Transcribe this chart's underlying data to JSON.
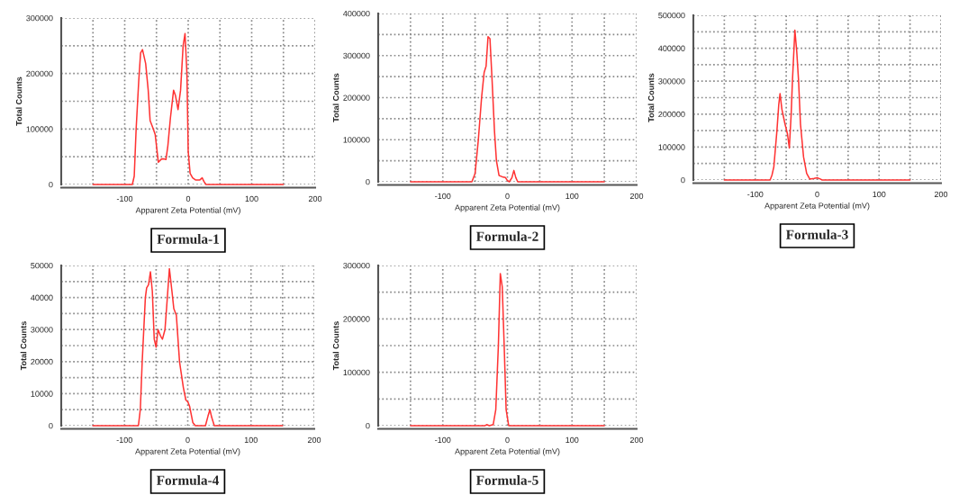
{
  "chart_data": [
    {
      "type": "line",
      "title": "Formula-1",
      "xlabel": "Apparent Zeta Potential (mV)",
      "ylabel": "Total Counts",
      "grid": true,
      "legend": false,
      "xlim": [
        -200,
        200
      ],
      "xticks": [
        {
          "value": -150,
          "label": null
        },
        -100,
        {
          "value": -50,
          "label": null
        },
        0,
        {
          "value": 50,
          "label": null
        },
        100,
        {
          "value": 150,
          "label": null
        },
        200
      ],
      "ylim": [
        0,
        300000
      ],
      "yticks": [
        0,
        {
          "value": 50000,
          "label": null
        },
        100000,
        {
          "value": 150000,
          "label": null
        },
        200000,
        {
          "value": 250000,
          "label": null
        },
        300000
      ],
      "series": [
        {
          "color": "#ff3333",
          "x": [
            -150,
            -88,
            -85,
            -82,
            -78,
            -75,
            -72,
            -67,
            -63,
            -60,
            -55,
            -52,
            -47,
            -42,
            -38,
            -35,
            -32,
            -28,
            -23,
            -20,
            -16,
            -12,
            -8,
            -5,
            -2,
            0,
            3,
            7,
            12,
            18,
            22,
            25,
            28,
            150
          ],
          "values": [
            0,
            0,
            15000,
            100000,
            185000,
            237000,
            243000,
            218000,
            170000,
            115000,
            100000,
            90000,
            40000,
            46000,
            46000,
            45000,
            70000,
            120000,
            170000,
            160000,
            135000,
            170000,
            250000,
            272000,
            200000,
            60000,
            20000,
            12000,
            8000,
            8000,
            12000,
            5000,
            0,
            0
          ]
        }
      ]
    },
    {
      "type": "line",
      "title": "Formula-2",
      "xlabel": "Apparent Zeta Potential (mV)",
      "ylabel": "Total Counts",
      "grid": true,
      "legend": false,
      "xlim": [
        -200,
        200
      ],
      "xticks": [
        {
          "value": -150,
          "label": null
        },
        -100,
        {
          "value": -50,
          "label": null
        },
        0,
        {
          "value": 50,
          "label": null
        },
        100,
        {
          "value": 150,
          "label": null
        },
        200
      ],
      "ylim": [
        0,
        400000
      ],
      "yticks": [
        0,
        {
          "value": 50000,
          "label": null
        },
        100000,
        {
          "value": 150000,
          "label": null
        },
        200000,
        {
          "value": 250000,
          "label": null
        },
        300000,
        {
          "value": 350000,
          "label": null
        },
        400000
      ],
      "series": [
        {
          "color": "#ff3333",
          "x": [
            -150,
            -55,
            -50,
            -45,
            -40,
            -36,
            -33,
            -30,
            -27,
            -24,
            -20,
            -17,
            -13,
            -8,
            -3,
            0,
            3,
            7,
            10,
            13,
            16,
            150
          ],
          "values": [
            0,
            0,
            20000,
            100000,
            200000,
            260000,
            275000,
            345000,
            340000,
            250000,
            120000,
            50000,
            15000,
            12000,
            10000,
            3000,
            0,
            10000,
            27000,
            10000,
            0,
            0
          ]
        }
      ]
    },
    {
      "type": "line",
      "title": "Formula-3",
      "xlabel": "Apparent Zeta Potential (mV)",
      "ylabel": "Total Counts",
      "grid": true,
      "legend": false,
      "xlim": [
        -200,
        200
      ],
      "xticks": [
        {
          "value": -150,
          "label": null
        },
        -100,
        {
          "value": -50,
          "label": null
        },
        0,
        {
          "value": 50,
          "label": null
        },
        100,
        {
          "value": 150,
          "label": null
        },
        200
      ],
      "ylim": [
        0,
        500000
      ],
      "yticks": [
        0,
        {
          "value": 50000,
          "label": null
        },
        100000,
        {
          "value": 150000,
          "label": null
        },
        200000,
        {
          "value": 250000,
          "label": null
        },
        300000,
        {
          "value": 350000,
          "label": null
        },
        400000,
        {
          "value": 450000,
          "label": null
        },
        500000
      ],
      "series": [
        {
          "color": "#ff3333",
          "x": [
            -150,
            -76,
            -73,
            -70,
            -65,
            -62,
            -60,
            -57,
            -52,
            -48,
            -45,
            -42,
            -40,
            -36,
            -33,
            -30,
            -27,
            -22,
            -17,
            -12,
            -5,
            0,
            5,
            8,
            150
          ],
          "values": [
            0,
            0,
            15000,
            40000,
            150000,
            230000,
            262000,
            215000,
            170000,
            140000,
            97000,
            200000,
            300000,
            455000,
            390000,
            300000,
            170000,
            70000,
            20000,
            3000,
            5000,
            7000,
            3000,
            0,
            0
          ]
        }
      ]
    },
    {
      "type": "line",
      "title": "Formula-4",
      "xlabel": "Apparent Zeta Potential (mV)",
      "ylabel": "Total Counts",
      "grid": true,
      "legend": false,
      "xlim": [
        -200,
        200
      ],
      "xticks": [
        {
          "value": -150,
          "label": null
        },
        -100,
        {
          "value": -50,
          "label": null
        },
        0,
        {
          "value": 50,
          "label": null
        },
        100,
        {
          "value": 150,
          "label": null
        },
        200
      ],
      "ylim": [
        0,
        50000
      ],
      "yticks": [
        0,
        {
          "value": 5000,
          "label": null
        },
        10000,
        {
          "value": 15000,
          "label": null
        },
        20000,
        {
          "value": 25000,
          "label": null
        },
        30000,
        {
          "value": 35000,
          "label": null
        },
        40000,
        {
          "value": 45000,
          "label": null
        },
        50000
      ],
      "series": [
        {
          "color": "#ff3333",
          "x": [
            -150,
            -78,
            -75,
            -72,
            -67,
            -65,
            -62,
            -59,
            -56,
            -53,
            -50,
            -47,
            -43,
            -40,
            -36,
            -33,
            -29,
            -25,
            -22,
            -18,
            -13,
            -7,
            -3,
            0,
            3,
            8,
            12,
            28,
            32,
            35,
            38,
            42,
            150
          ],
          "values": [
            0,
            0,
            5000,
            20000,
            40000,
            43000,
            44000,
            48000,
            42000,
            27000,
            24500,
            30000,
            28000,
            27000,
            30000,
            38000,
            49000,
            42000,
            36500,
            34500,
            20000,
            12000,
            8000,
            7500,
            6000,
            1000,
            0,
            0,
            3000,
            5000,
            2500,
            0,
            0
          ]
        }
      ]
    },
    {
      "type": "line",
      "title": "Formula-5",
      "xlabel": "Apparent Zeta Potential (mV)",
      "ylabel": "Total Counts",
      "grid": true,
      "legend": false,
      "xlim": [
        -200,
        200
      ],
      "xticks": [
        {
          "value": -150,
          "label": null
        },
        -100,
        {
          "value": -50,
          "label": null
        },
        0,
        {
          "value": 50,
          "label": null
        },
        100,
        {
          "value": 150,
          "label": null
        },
        200
      ],
      "ylim": [
        0,
        300000
      ],
      "yticks": [
        0,
        {
          "value": 50000,
          "label": null
        },
        100000,
        {
          "value": 150000,
          "label": null
        },
        200000,
        {
          "value": 250000,
          "label": null
        },
        300000
      ],
      "series": [
        {
          "color": "#ff3333",
          "x": [
            -150,
            -35,
            -32,
            -28,
            -22,
            -18,
            -14,
            -11,
            -8,
            -5,
            -2,
            2,
            150
          ],
          "values": [
            0,
            0,
            2000,
            0,
            2000,
            30000,
            150000,
            285000,
            260000,
            150000,
            30000,
            0,
            0
          ]
        }
      ]
    }
  ]
}
